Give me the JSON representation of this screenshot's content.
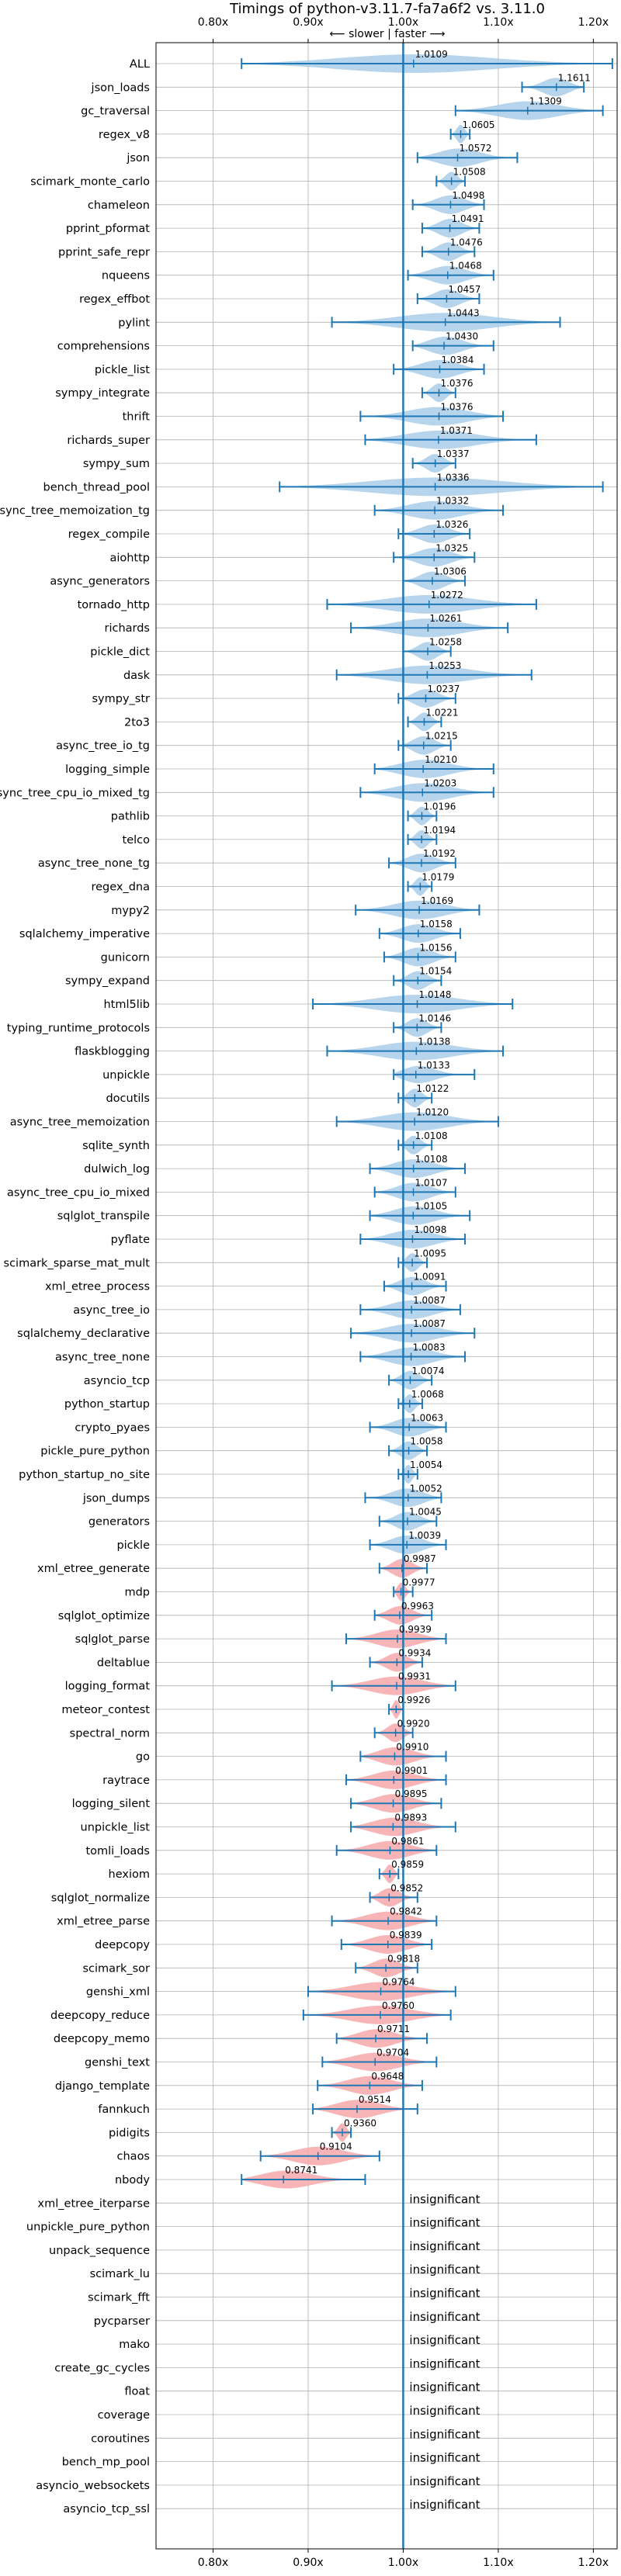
{
  "chart_data": {
    "type": "violin",
    "title": "Timings of python-v3.11.7-fa7a6f2 vs. 3.11.0",
    "direction_label": "⟵ slower | faster ⟶",
    "xlim": [
      0.74,
      1.225
    ],
    "xticks": [
      0.8,
      0.9,
      1.0,
      1.1,
      1.2
    ],
    "xtick_labels": [
      "0.80x",
      "0.90x",
      "1.00x",
      "1.10x",
      "1.20x"
    ],
    "grid": true,
    "colors": {
      "faster": "#a9cce8",
      "slower": "#f7a8ac",
      "whisker": "#1f77b4",
      "reference": "#1f77b4"
    },
    "insignificant_label": "insignificant",
    "benchmarks": [
      {
        "name": "ALL",
        "value": 1.0109,
        "label": "1.0109",
        "lo": 0.83,
        "hi": 1.22
      },
      {
        "name": "json_loads",
        "value": 1.1611,
        "label": "1.1611",
        "lo": 1.125,
        "hi": 1.19
      },
      {
        "name": "gc_traversal",
        "value": 1.1309,
        "label": "1.1309",
        "lo": 1.055,
        "hi": 1.21
      },
      {
        "name": "regex_v8",
        "value": 1.0605,
        "label": "1.0605",
        "lo": 1.05,
        "hi": 1.07
      },
      {
        "name": "json",
        "value": 1.0572,
        "label": "1.0572",
        "lo": 1.015,
        "hi": 1.12
      },
      {
        "name": "scimark_monte_carlo",
        "value": 1.0508,
        "label": "1.0508",
        "lo": 1.035,
        "hi": 1.065
      },
      {
        "name": "chameleon",
        "value": 1.0498,
        "label": "1.0498",
        "lo": 1.01,
        "hi": 1.085
      },
      {
        "name": "pprint_pformat",
        "value": 1.0491,
        "label": "1.0491",
        "lo": 1.02,
        "hi": 1.08
      },
      {
        "name": "pprint_safe_repr",
        "value": 1.0476,
        "label": "1.0476",
        "lo": 1.02,
        "hi": 1.075
      },
      {
        "name": "nqueens",
        "value": 1.0468,
        "label": "1.0468",
        "lo": 1.005,
        "hi": 1.095
      },
      {
        "name": "regex_effbot",
        "value": 1.0457,
        "label": "1.0457",
        "lo": 1.015,
        "hi": 1.08
      },
      {
        "name": "pylint",
        "value": 1.0443,
        "label": "1.0443",
        "lo": 0.925,
        "hi": 1.165
      },
      {
        "name": "comprehensions",
        "value": 1.043,
        "label": "1.0430",
        "lo": 1.01,
        "hi": 1.095
      },
      {
        "name": "pickle_list",
        "value": 1.0384,
        "label": "1.0384",
        "lo": 0.99,
        "hi": 1.085
      },
      {
        "name": "sympy_integrate",
        "value": 1.0376,
        "label": "1.0376",
        "lo": 1.02,
        "hi": 1.055
      },
      {
        "name": "thrift",
        "value": 1.0376,
        "label": "1.0376",
        "lo": 0.955,
        "hi": 1.105
      },
      {
        "name": "richards_super",
        "value": 1.0371,
        "label": "1.0371",
        "lo": 0.96,
        "hi": 1.14
      },
      {
        "name": "sympy_sum",
        "value": 1.0337,
        "label": "1.0337",
        "lo": 1.01,
        "hi": 1.055
      },
      {
        "name": "bench_thread_pool",
        "value": 1.0336,
        "label": "1.0336",
        "lo": 0.87,
        "hi": 1.21
      },
      {
        "name": "async_tree_memoization_tg",
        "value": 1.0332,
        "label": "1.0332",
        "lo": 0.97,
        "hi": 1.105
      },
      {
        "name": "regex_compile",
        "value": 1.0326,
        "label": "1.0326",
        "lo": 0.995,
        "hi": 1.07
      },
      {
        "name": "aiohttp",
        "value": 1.0325,
        "label": "1.0325",
        "lo": 0.99,
        "hi": 1.075
      },
      {
        "name": "async_generators",
        "value": 1.0306,
        "label": "1.0306",
        "lo": 1.0,
        "hi": 1.065
      },
      {
        "name": "tornado_http",
        "value": 1.0272,
        "label": "1.0272",
        "lo": 0.92,
        "hi": 1.14
      },
      {
        "name": "richards",
        "value": 1.0261,
        "label": "1.0261",
        "lo": 0.945,
        "hi": 1.11
      },
      {
        "name": "pickle_dict",
        "value": 1.0258,
        "label": "1.0258",
        "lo": 1.0,
        "hi": 1.05
      },
      {
        "name": "dask",
        "value": 1.0253,
        "label": "1.0253",
        "lo": 0.93,
        "hi": 1.135
      },
      {
        "name": "sympy_str",
        "value": 1.0237,
        "label": "1.0237",
        "lo": 0.995,
        "hi": 1.055
      },
      {
        "name": "2to3",
        "value": 1.0221,
        "label": "1.0221",
        "lo": 1.005,
        "hi": 1.04
      },
      {
        "name": "async_tree_io_tg",
        "value": 1.0215,
        "label": "1.0215",
        "lo": 0.995,
        "hi": 1.05
      },
      {
        "name": "logging_simple",
        "value": 1.021,
        "label": "1.0210",
        "lo": 0.97,
        "hi": 1.095
      },
      {
        "name": "async_tree_cpu_io_mixed_tg",
        "value": 1.0203,
        "label": "1.0203",
        "lo": 0.955,
        "hi": 1.095
      },
      {
        "name": "pathlib",
        "value": 1.0196,
        "label": "1.0196",
        "lo": 1.005,
        "hi": 1.035
      },
      {
        "name": "telco",
        "value": 1.0194,
        "label": "1.0194",
        "lo": 1.005,
        "hi": 1.035
      },
      {
        "name": "async_tree_none_tg",
        "value": 1.0192,
        "label": "1.0192",
        "lo": 0.985,
        "hi": 1.055
      },
      {
        "name": "regex_dna",
        "value": 1.0179,
        "label": "1.0179",
        "lo": 1.005,
        "hi": 1.03
      },
      {
        "name": "mypy2",
        "value": 1.0169,
        "label": "1.0169",
        "lo": 0.95,
        "hi": 1.08
      },
      {
        "name": "sqlalchemy_imperative",
        "value": 1.0158,
        "label": "1.0158",
        "lo": 0.975,
        "hi": 1.06
      },
      {
        "name": "gunicorn",
        "value": 1.0156,
        "label": "1.0156",
        "lo": 0.98,
        "hi": 1.055
      },
      {
        "name": "sympy_expand",
        "value": 1.0154,
        "label": "1.0154",
        "lo": 0.99,
        "hi": 1.04
      },
      {
        "name": "html5lib",
        "value": 1.0148,
        "label": "1.0148",
        "lo": 0.905,
        "hi": 1.115
      },
      {
        "name": "typing_runtime_protocols",
        "value": 1.0146,
        "label": "1.0146",
        "lo": 0.99,
        "hi": 1.04
      },
      {
        "name": "flaskblogging",
        "value": 1.0138,
        "label": "1.0138",
        "lo": 0.92,
        "hi": 1.105
      },
      {
        "name": "unpickle",
        "value": 1.0133,
        "label": "1.0133",
        "lo": 0.99,
        "hi": 1.075
      },
      {
        "name": "docutils",
        "value": 1.0122,
        "label": "1.0122",
        "lo": 0.995,
        "hi": 1.03
      },
      {
        "name": "async_tree_memoization",
        "value": 1.012,
        "label": "1.0120",
        "lo": 0.93,
        "hi": 1.1
      },
      {
        "name": "sqlite_synth",
        "value": 1.0108,
        "label": "1.0108",
        "lo": 0.995,
        "hi": 1.03
      },
      {
        "name": "dulwich_log",
        "value": 1.0108,
        "label": "1.0108",
        "lo": 0.965,
        "hi": 1.065
      },
      {
        "name": "async_tree_cpu_io_mixed",
        "value": 1.0107,
        "label": "1.0107",
        "lo": 0.97,
        "hi": 1.055
      },
      {
        "name": "sqlglot_transpile",
        "value": 1.0105,
        "label": "1.0105",
        "lo": 0.965,
        "hi": 1.07
      },
      {
        "name": "pyflate",
        "value": 1.0098,
        "label": "1.0098",
        "lo": 0.955,
        "hi": 1.065
      },
      {
        "name": "scimark_sparse_mat_mult",
        "value": 1.0095,
        "label": "1.0095",
        "lo": 0.995,
        "hi": 1.025
      },
      {
        "name": "xml_etree_process",
        "value": 1.0091,
        "label": "1.0091",
        "lo": 0.98,
        "hi": 1.045
      },
      {
        "name": "async_tree_io",
        "value": 1.0087,
        "label": "1.0087",
        "lo": 0.955,
        "hi": 1.06
      },
      {
        "name": "sqlalchemy_declarative",
        "value": 1.0087,
        "label": "1.0087",
        "lo": 0.945,
        "hi": 1.075
      },
      {
        "name": "async_tree_none",
        "value": 1.0083,
        "label": "1.0083",
        "lo": 0.955,
        "hi": 1.065
      },
      {
        "name": "asyncio_tcp",
        "value": 1.0074,
        "label": "1.0074",
        "lo": 0.985,
        "hi": 1.03
      },
      {
        "name": "python_startup",
        "value": 1.0068,
        "label": "1.0068",
        "lo": 0.995,
        "hi": 1.02
      },
      {
        "name": "crypto_pyaes",
        "value": 1.0063,
        "label": "1.0063",
        "lo": 0.965,
        "hi": 1.045
      },
      {
        "name": "pickle_pure_python",
        "value": 1.0058,
        "label": "1.0058",
        "lo": 0.985,
        "hi": 1.025
      },
      {
        "name": "python_startup_no_site",
        "value": 1.0054,
        "label": "1.0054",
        "lo": 0.995,
        "hi": 1.015
      },
      {
        "name": "json_dumps",
        "value": 1.0052,
        "label": "1.0052",
        "lo": 0.96,
        "hi": 1.04
      },
      {
        "name": "generators",
        "value": 1.0045,
        "label": "1.0045",
        "lo": 0.975,
        "hi": 1.035
      },
      {
        "name": "pickle",
        "value": 1.0039,
        "label": "1.0039",
        "lo": 0.965,
        "hi": 1.045
      },
      {
        "name": "xml_etree_generate",
        "value": 0.9987,
        "label": "0.9987",
        "lo": 0.975,
        "hi": 1.025
      },
      {
        "name": "mdp",
        "value": 0.9977,
        "label": "0.9977",
        "lo": 0.99,
        "hi": 1.01
      },
      {
        "name": "sqlglot_optimize",
        "value": 0.9963,
        "label": "0.9963",
        "lo": 0.97,
        "hi": 1.03
      },
      {
        "name": "sqlglot_parse",
        "value": 0.9939,
        "label": "0.9939",
        "lo": 0.94,
        "hi": 1.045
      },
      {
        "name": "deltablue",
        "value": 0.9934,
        "label": "0.9934",
        "lo": 0.965,
        "hi": 1.02
      },
      {
        "name": "logging_format",
        "value": 0.9931,
        "label": "0.9931",
        "lo": 0.925,
        "hi": 1.055
      },
      {
        "name": "meteor_contest",
        "value": 0.9926,
        "label": "0.9926",
        "lo": 0.985,
        "hi": 1.0
      },
      {
        "name": "spectral_norm",
        "value": 0.992,
        "label": "0.9920",
        "lo": 0.97,
        "hi": 1.01
      },
      {
        "name": "go",
        "value": 0.991,
        "label": "0.9910",
        "lo": 0.955,
        "hi": 1.045
      },
      {
        "name": "raytrace",
        "value": 0.9901,
        "label": "0.9901",
        "lo": 0.94,
        "hi": 1.045
      },
      {
        "name": "logging_silent",
        "value": 0.9895,
        "label": "0.9895",
        "lo": 0.945,
        "hi": 1.04
      },
      {
        "name": "unpickle_list",
        "value": 0.9893,
        "label": "0.9893",
        "lo": 0.945,
        "hi": 1.055
      },
      {
        "name": "tomli_loads",
        "value": 0.9861,
        "label": "0.9861",
        "lo": 0.93,
        "hi": 1.035
      },
      {
        "name": "hexiom",
        "value": 0.9859,
        "label": "0.9859",
        "lo": 0.975,
        "hi": 0.995
      },
      {
        "name": "sqlglot_normalize",
        "value": 0.9852,
        "label": "0.9852",
        "lo": 0.965,
        "hi": 1.015
      },
      {
        "name": "xml_etree_parse",
        "value": 0.9842,
        "label": "0.9842",
        "lo": 0.925,
        "hi": 1.035
      },
      {
        "name": "deepcopy",
        "value": 0.9839,
        "label": "0.9839",
        "lo": 0.935,
        "hi": 1.03
      },
      {
        "name": "scimark_sor",
        "value": 0.9818,
        "label": "0.9818",
        "lo": 0.95,
        "hi": 1.015
      },
      {
        "name": "genshi_xml",
        "value": 0.9764,
        "label": "0.9764",
        "lo": 0.9,
        "hi": 1.055
      },
      {
        "name": "deepcopy_reduce",
        "value": 0.976,
        "label": "0.9760",
        "lo": 0.895,
        "hi": 1.05
      },
      {
        "name": "deepcopy_memo",
        "value": 0.9711,
        "label": "0.9711",
        "lo": 0.93,
        "hi": 1.025
      },
      {
        "name": "genshi_text",
        "value": 0.9704,
        "label": "0.9704",
        "lo": 0.915,
        "hi": 1.035
      },
      {
        "name": "django_template",
        "value": 0.9648,
        "label": "0.9648",
        "lo": 0.91,
        "hi": 1.02
      },
      {
        "name": "fannkuch",
        "value": 0.9514,
        "label": "0.9514",
        "lo": 0.905,
        "hi": 1.015
      },
      {
        "name": "pidigits",
        "value": 0.936,
        "label": "0.9360",
        "lo": 0.925,
        "hi": 0.945
      },
      {
        "name": "chaos",
        "value": 0.9104,
        "label": "0.9104",
        "lo": 0.85,
        "hi": 0.975
      },
      {
        "name": "nbody",
        "value": 0.8741,
        "label": "0.8741",
        "lo": 0.83,
        "hi": 0.96
      },
      {
        "name": "xml_etree_iterparse",
        "value": null,
        "label": null
      },
      {
        "name": "unpickle_pure_python",
        "value": null,
        "label": null
      },
      {
        "name": "unpack_sequence",
        "value": null,
        "label": null
      },
      {
        "name": "scimark_lu",
        "value": null,
        "label": null
      },
      {
        "name": "scimark_fft",
        "value": null,
        "label": null
      },
      {
        "name": "pycparser",
        "value": null,
        "label": null
      },
      {
        "name": "mako",
        "value": null,
        "label": null
      },
      {
        "name": "create_gc_cycles",
        "value": null,
        "label": null
      },
      {
        "name": "float",
        "value": null,
        "label": null
      },
      {
        "name": "coverage",
        "value": null,
        "label": null
      },
      {
        "name": "coroutines",
        "value": null,
        "label": null
      },
      {
        "name": "bench_mp_pool",
        "value": null,
        "label": null
      },
      {
        "name": "asyncio_websockets",
        "value": null,
        "label": null
      },
      {
        "name": "asyncio_tcp_ssl",
        "value": null,
        "label": null
      }
    ]
  }
}
